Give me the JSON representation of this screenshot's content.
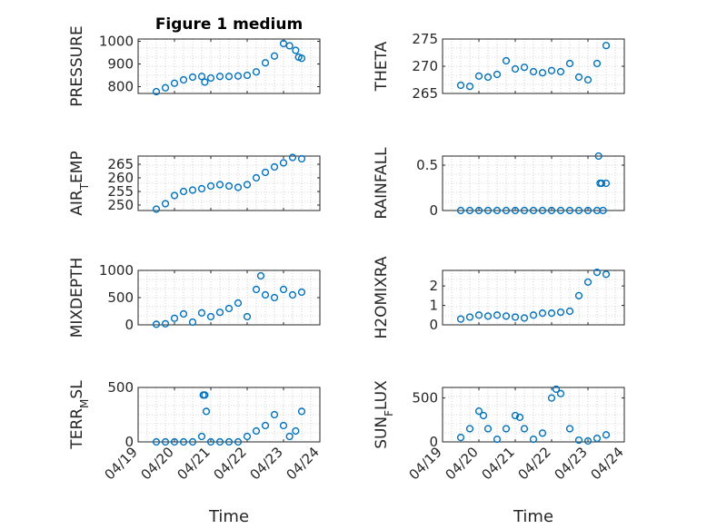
{
  "figure": {
    "title": "Figure 1 medium",
    "xlabel": "Time",
    "date_ticks": [
      "04/19",
      "04/20",
      "04/21",
      "04/22",
      "04/23",
      "04/24"
    ],
    "series_color": "#0072bd"
  },
  "chart_data": [
    {
      "type": "scatter",
      "ylabel": "PRESSURE",
      "xlim": [
        "04/19",
        "04/24"
      ],
      "ylim": [
        770,
        1010
      ],
      "yticks": [
        800,
        900,
        1000
      ],
      "grid": true,
      "x": [
        "04/19 12:00",
        "04/19 18:00",
        "04/20 00:00",
        "04/20 06:00",
        "04/20 12:00",
        "04/20 18:00",
        "04/20 20:00",
        "04/21 00:00",
        "04/21 06:00",
        "04/21 12:00",
        "04/21 18:00",
        "04/22 00:00",
        "04/22 06:00",
        "04/22 12:00",
        "04/22 18:00",
        "04/23 00:00",
        "04/23 04:00",
        "04/23 08:00",
        "04/23 10:00",
        "04/23 12:00"
      ],
      "y": [
        778,
        795,
        815,
        830,
        842,
        845,
        820,
        838,
        845,
        845,
        847,
        850,
        865,
        905,
        935,
        990,
        980,
        960,
        930,
        925
      ]
    },
    {
      "type": "scatter",
      "ylabel": "THETA",
      "xlim": [
        "04/19",
        "04/24"
      ],
      "ylim": [
        265,
        275
      ],
      "yticks": [
        265,
        270,
        275
      ],
      "grid": true,
      "x": [
        "04/19 12:00",
        "04/19 18:00",
        "04/20 00:00",
        "04/20 06:00",
        "04/20 12:00",
        "04/20 18:00",
        "04/21 00:00",
        "04/21 06:00",
        "04/21 12:00",
        "04/21 18:00",
        "04/22 00:00",
        "04/22 06:00",
        "04/22 12:00",
        "04/22 18:00",
        "04/23 00:00",
        "04/23 06:00",
        "04/23 12:00"
      ],
      "y": [
        266.5,
        266.3,
        268.2,
        268.0,
        268.5,
        271.0,
        269.5,
        269.8,
        269.0,
        268.8,
        269.2,
        269.0,
        270.5,
        268.0,
        267.5,
        270.5,
        273.8
      ]
    },
    {
      "type": "scatter",
      "ylabel": "AIR_TEMP",
      "xlim": [
        "04/19",
        "04/24"
      ],
      "ylim": [
        248,
        268
      ],
      "yticks": [
        250,
        255,
        260,
        265
      ],
      "grid": true,
      "x": [
        "04/19 12:00",
        "04/19 18:00",
        "04/20 00:00",
        "04/20 06:00",
        "04/20 12:00",
        "04/20 18:00",
        "04/21 00:00",
        "04/21 06:00",
        "04/21 12:00",
        "04/21 18:00",
        "04/22 00:00",
        "04/22 06:00",
        "04/22 12:00",
        "04/22 18:00",
        "04/23 00:00",
        "04/23 06:00",
        "04/23 12:00"
      ],
      "y": [
        248.5,
        250.5,
        253.5,
        255.0,
        255.5,
        256.0,
        257.0,
        257.5,
        257.0,
        256.5,
        257.5,
        260.0,
        262.0,
        264.0,
        265.5,
        267.5,
        267.0
      ]
    },
    {
      "type": "scatter",
      "ylabel": "RAINFALL",
      "xlim": [
        "04/19",
        "04/24"
      ],
      "ylim": [
        0,
        0.6
      ],
      "yticks": [
        0,
        0.5
      ],
      "grid": true,
      "x": [
        "04/19 12:00",
        "04/19 18:00",
        "04/20 00:00",
        "04/20 06:00",
        "04/20 12:00",
        "04/20 18:00",
        "04/21 00:00",
        "04/21 06:00",
        "04/21 12:00",
        "04/21 18:00",
        "04/22 00:00",
        "04/22 06:00",
        "04/22 12:00",
        "04/22 18:00",
        "04/23 00:00",
        "04/23 06:00",
        "04/23 07:00",
        "04/23 08:00",
        "04/23 09:00",
        "04/23 10:00",
        "04/23 12:00"
      ],
      "y": [
        0,
        0,
        0,
        0,
        0,
        0,
        0,
        0,
        0,
        0,
        0,
        0,
        0,
        0,
        0,
        0,
        0.6,
        0.3,
        0.3,
        0,
        0.3
      ]
    },
    {
      "type": "scatter",
      "ylabel": "MIXDEPTH",
      "xlim": [
        "04/19",
        "04/24"
      ],
      "ylim": [
        0,
        1000
      ],
      "yticks": [
        0,
        500,
        1000
      ],
      "grid": true,
      "x": [
        "04/19 12:00",
        "04/19 18:00",
        "04/20 00:00",
        "04/20 06:00",
        "04/20 12:00",
        "04/20 18:00",
        "04/21 00:00",
        "04/21 06:00",
        "04/21 12:00",
        "04/21 18:00",
        "04/22 00:00",
        "04/22 06:00",
        "04/22 09:00",
        "04/22 12:00",
        "04/22 18:00",
        "04/23 00:00",
        "04/23 06:00",
        "04/23 12:00"
      ],
      "y": [
        10,
        20,
        120,
        200,
        50,
        220,
        150,
        230,
        300,
        400,
        150,
        650,
        900,
        550,
        500,
        650,
        550,
        600
      ]
    },
    {
      "type": "scatter",
      "ylabel": "H2OMIXRA",
      "xlim": [
        "04/19",
        "04/24"
      ],
      "ylim": [
        0,
        2.8
      ],
      "yticks": [
        0,
        1,
        2
      ],
      "grid": true,
      "x": [
        "04/19 12:00",
        "04/19 18:00",
        "04/20 00:00",
        "04/20 06:00",
        "04/20 12:00",
        "04/20 18:00",
        "04/21 00:00",
        "04/21 06:00",
        "04/21 12:00",
        "04/21 18:00",
        "04/22 00:00",
        "04/22 06:00",
        "04/22 12:00",
        "04/22 18:00",
        "04/23 00:00",
        "04/23 06:00",
        "04/23 12:00"
      ],
      "y": [
        0.3,
        0.4,
        0.5,
        0.45,
        0.5,
        0.45,
        0.4,
        0.35,
        0.5,
        0.6,
        0.6,
        0.65,
        0.7,
        1.5,
        2.2,
        2.7,
        2.6
      ]
    },
    {
      "type": "scatter",
      "ylabel": "TERR_MSL",
      "xlim": [
        "04/19",
        "04/24"
      ],
      "ylim": [
        0,
        500
      ],
      "yticks": [
        0,
        500
      ],
      "grid": true,
      "x": [
        "04/19 12:00",
        "04/19 18:00",
        "04/20 00:00",
        "04/20 06:00",
        "04/20 12:00",
        "04/20 18:00",
        "04/20 19:00",
        "04/20 20:00",
        "04/20 21:00",
        "04/21 00:00",
        "04/21 06:00",
        "04/21 12:00",
        "04/21 18:00",
        "04/22 00:00",
        "04/22 06:00",
        "04/22 12:00",
        "04/22 18:00",
        "04/23 00:00",
        "04/23 04:00",
        "04/23 08:00",
        "04/23 12:00"
      ],
      "y": [
        0,
        0,
        0,
        0,
        0,
        50,
        430,
        430,
        280,
        0,
        0,
        0,
        0,
        50,
        100,
        150,
        250,
        150,
        50,
        100,
        280
      ]
    },
    {
      "type": "scatter",
      "ylabel": "SUN_FLUX",
      "xlim": [
        "04/19",
        "04/24"
      ],
      "ylim": [
        0,
        620
      ],
      "yticks": [
        0,
        500
      ],
      "grid": true,
      "x": [
        "04/19 12:00",
        "04/19 18:00",
        "04/20 00:00",
        "04/20 03:00",
        "04/20 06:00",
        "04/20 12:00",
        "04/20 18:00",
        "04/21 00:00",
        "04/21 03:00",
        "04/21 06:00",
        "04/21 12:00",
        "04/21 18:00",
        "04/22 00:00",
        "04/22 03:00",
        "04/22 06:00",
        "04/22 12:00",
        "04/22 18:00",
        "04/23 00:00",
        "04/23 06:00",
        "04/23 12:00"
      ],
      "y": [
        50,
        150,
        350,
        300,
        150,
        30,
        150,
        300,
        280,
        150,
        30,
        100,
        500,
        600,
        550,
        150,
        20,
        10,
        40,
        80
      ]
    }
  ]
}
